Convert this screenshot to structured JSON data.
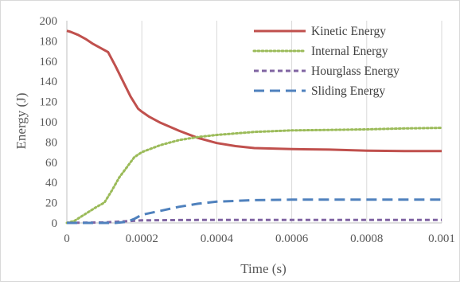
{
  "chart_data": {
    "type": "line",
    "title": "",
    "xlabel": "Time (s)",
    "ylabel": "Energy (J)",
    "xlim": [
      0,
      0.001
    ],
    "ylim": [
      0,
      200
    ],
    "xticks": [
      0,
      0.0002,
      0.0004,
      0.0006,
      0.0008,
      0.001
    ],
    "xtick_labels": [
      "0",
      "0.0002",
      "0.0004",
      "0.0006",
      "0.0008",
      "0.001"
    ],
    "yticks": [
      0,
      20,
      40,
      60,
      80,
      100,
      120,
      140,
      160,
      180,
      200
    ],
    "ytick_labels": [
      "0",
      "20",
      "40",
      "60",
      "80",
      "100",
      "120",
      "140",
      "160",
      "180",
      "200"
    ],
    "grid": "vertical",
    "legend_position": "top-right",
    "series": [
      {
        "name": "Kinetic Energy",
        "color": "#c0504d",
        "style": "solid",
        "x": [
          0,
          1e-05,
          3e-05,
          5e-05,
          7e-05,
          9e-05,
          0.00011,
          0.00013,
          0.00015,
          0.00017,
          0.00019,
          0.0002,
          0.00022,
          0.00025,
          0.0003,
          0.00035,
          0.0004,
          0.00045,
          0.0005,
          0.0006,
          0.0007,
          0.0008,
          0.0009,
          0.001
        ],
        "y": [
          190,
          189,
          186,
          182,
          177,
          173,
          169,
          155,
          140,
          125,
          113,
          110,
          105,
          99,
          91,
          84,
          79,
          76,
          74,
          73,
          72.5,
          71.5,
          71,
          71
        ]
      },
      {
        "name": "Internal Energy",
        "color": "#9bbb59",
        "style": "dotted",
        "x": [
          0,
          2e-05,
          5e-05,
          8e-05,
          0.0001,
          0.00012,
          0.00014,
          0.00016,
          0.00018,
          0.0002,
          0.00025,
          0.0003,
          0.00035,
          0.0004,
          0.0005,
          0.0006,
          0.0007,
          0.0008,
          0.0009,
          0.001
        ],
        "y": [
          0,
          2,
          9,
          16,
          20,
          32,
          45,
          55,
          65,
          70,
          77,
          82,
          85,
          87,
          90,
          91.5,
          92,
          92.5,
          93.5,
          94
        ]
      },
      {
        "name": "Hourglass Energy",
        "color": "#8064a2",
        "style": "dashed",
        "x": [
          0,
          0.0001,
          0.00015,
          0.0002,
          0.0003,
          0.0004,
          0.0006,
          0.0008,
          0.001
        ],
        "y": [
          0,
          0.5,
          1.5,
          2.5,
          2.8,
          3,
          3,
          3,
          3
        ]
      },
      {
        "name": "Sliding Energy",
        "color": "#4f81bd",
        "style": "long-dash",
        "x": [
          0,
          0.00013,
          0.00016,
          0.00018,
          0.0002,
          0.00025,
          0.0003,
          0.00035,
          0.0004,
          0.0005,
          0.0006,
          0.0008,
          0.001
        ],
        "y": [
          0,
          0,
          1,
          4,
          8,
          12,
          16,
          19,
          21,
          22.5,
          23,
          23,
          23
        ]
      }
    ]
  }
}
